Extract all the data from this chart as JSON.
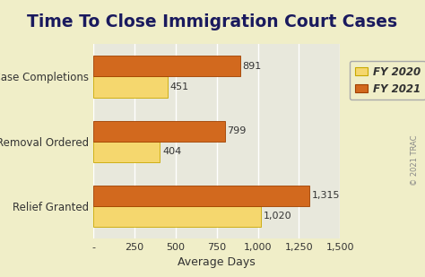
{
  "title": "Time To Close Immigration Court Cases",
  "categories": [
    "All Case Completions",
    "Removal Ordered",
    "Relief Granted"
  ],
  "fy2020_values": [
    451,
    404,
    1020
  ],
  "fy2021_values": [
    891,
    799,
    1315
  ],
  "fy2020_color": "#F5D76E",
  "fy2021_color": "#D2691E",
  "bar_edge_color": "#C8A800",
  "background_color": "#F0EEC8",
  "plot_bg_color": "#E8E8DC",
  "xlabel": "Average Days",
  "legend_labels": [
    "FY 2020",
    "FY 2021"
  ],
  "xlim": [
    0,
    1500
  ],
  "xticks": [
    0,
    250,
    500,
    750,
    1000,
    1250,
    1500
  ],
  "xtick_labels": [
    "-",
    "250",
    "500",
    "750",
    "1,000",
    "1,250",
    "1,500"
  ],
  "watermark": "© 2021 TRAC",
  "title_fontsize": 13.5,
  "label_fontsize": 8.5,
  "tick_fontsize": 8,
  "bar_height": 0.32,
  "value_fontsize": 8
}
